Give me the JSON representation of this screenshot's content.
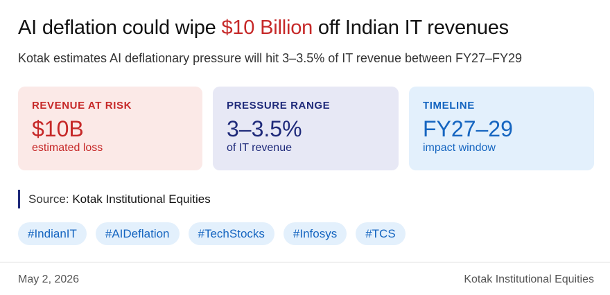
{
  "headline": {
    "prefix": "AI deflation could wipe ",
    "highlight": "$10 Billion",
    "suffix": " off Indian IT revenues"
  },
  "subtitle": "Kotak estimates AI deflationary pressure will hit 3–3.5% of IT revenue between FY27–FY29",
  "cards": [
    {
      "label": "REVENUE AT RISK",
      "value": "$10B",
      "sub": "estimated loss"
    },
    {
      "label": "PRESSURE RANGE",
      "value": "3–3.5%",
      "sub": "of IT revenue"
    },
    {
      "label": "TIMELINE",
      "value": "FY27–29",
      "sub": "impact window"
    }
  ],
  "source": {
    "label": "Source:",
    "name": "Kotak Institutional Equities"
  },
  "tags": [
    "#IndianIT",
    "#AIDeflation",
    "#TechStocks",
    "#Infosys",
    "#TCS"
  ],
  "footer": {
    "date": "May 2, 2026",
    "source": "Kotak Institutional Equities"
  },
  "colors": {
    "highlight": "#c62828",
    "card_risk_bg": "#fbe9e7",
    "card_pressure_bg": "#e7e8f5",
    "card_timeline_bg": "#e3f0fc",
    "tag_bg": "#e3f0fc",
    "tag_text": "#1565c0",
    "source_bar": "#1f2a7a"
  }
}
